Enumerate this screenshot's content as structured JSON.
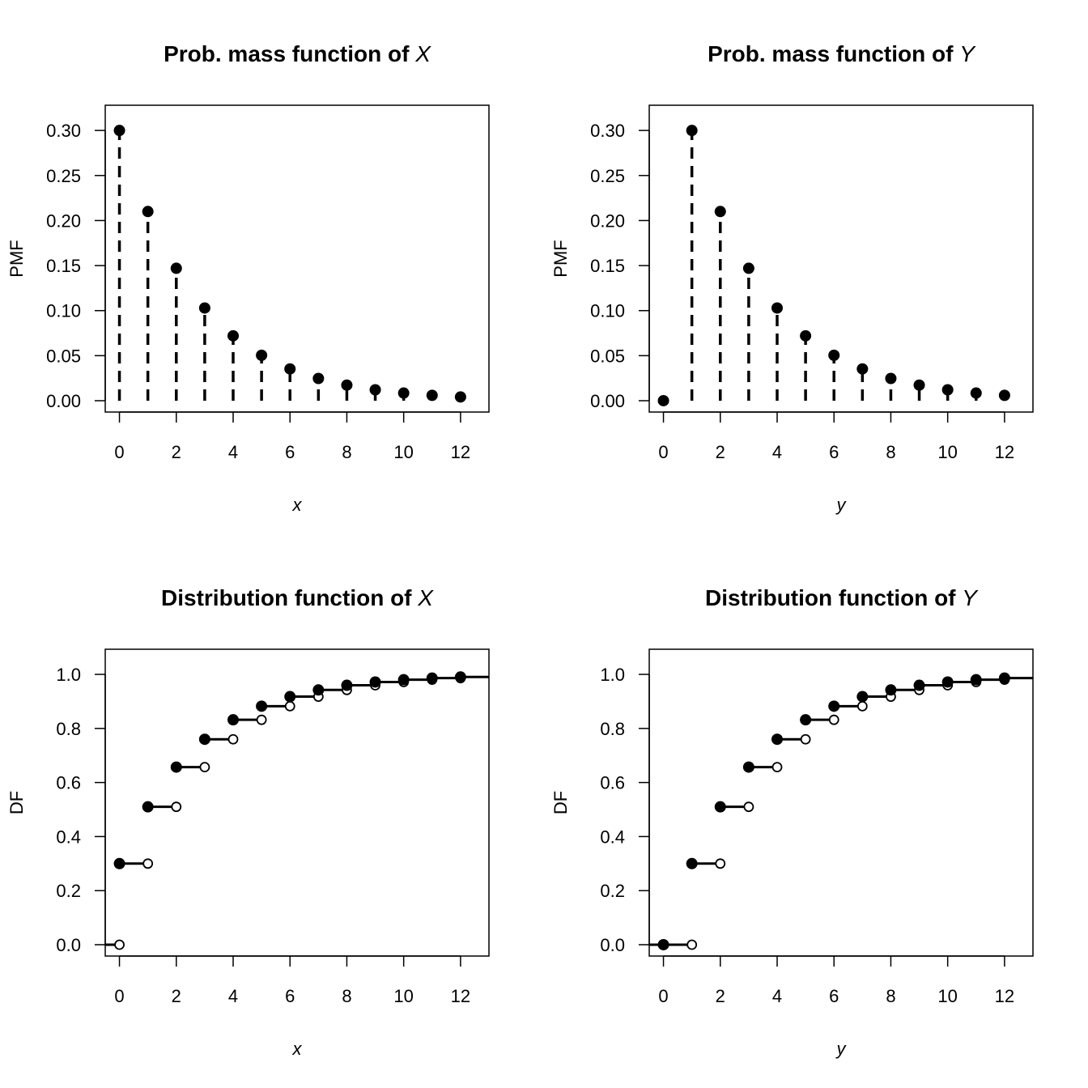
{
  "chart_data": [
    {
      "type": "scatter",
      "style": "pmf-dashed-stems",
      "title": "Prob. mass function of ",
      "title_var": "X",
      "xlabel": "x",
      "ylabel": "PMF",
      "xlim": [
        -0.5,
        13
      ],
      "ylim": [
        -0.0126,
        0.328
      ],
      "xticks": [
        "0",
        "2",
        "4",
        "6",
        "8",
        "10",
        "12"
      ],
      "yticks": [
        "0.00",
        "0.05",
        "0.10",
        "0.15",
        "0.20",
        "0.25",
        "0.30"
      ],
      "x": [
        0,
        1,
        2,
        3,
        4,
        5,
        6,
        7,
        8,
        9,
        10,
        11,
        12
      ],
      "y": [
        0.3,
        0.21,
        0.147,
        0.1029,
        0.07203,
        0.050421,
        0.035295,
        0.024706,
        0.017294,
        0.012106,
        0.008474,
        0.005932,
        0.004152
      ],
      "grid": false
    },
    {
      "type": "scatter",
      "style": "pmf-dashed-stems",
      "title": "Prob. mass function of ",
      "title_var": "Y",
      "xlabel": "y",
      "ylabel": "PMF",
      "xlim": [
        -0.5,
        13
      ],
      "ylim": [
        -0.0126,
        0.328
      ],
      "xticks": [
        "0",
        "2",
        "4",
        "6",
        "8",
        "10",
        "12"
      ],
      "yticks": [
        "0.00",
        "0.05",
        "0.10",
        "0.15",
        "0.20",
        "0.25",
        "0.30"
      ],
      "x": [
        0,
        1,
        2,
        3,
        4,
        5,
        6,
        7,
        8,
        9,
        10,
        11,
        12
      ],
      "y": [
        0,
        0.3,
        0.21,
        0.147,
        0.1029,
        0.07203,
        0.050421,
        0.035295,
        0.024706,
        0.017294,
        0.012106,
        0.008474,
        0.005932
      ],
      "grid": false
    },
    {
      "type": "line",
      "style": "step-cdf",
      "title": "Distribution function of ",
      "title_var": "X",
      "xlabel": "x",
      "ylabel": "DF",
      "xlim": [
        -0.5,
        13
      ],
      "ylim": [
        -0.042,
        1.093
      ],
      "xticks": [
        "0",
        "2",
        "4",
        "6",
        "8",
        "10",
        "12"
      ],
      "yticks": [
        "0.0",
        "0.2",
        "0.4",
        "0.6",
        "0.8",
        "1.0"
      ],
      "x": [
        0,
        1,
        2,
        3,
        4,
        5,
        6,
        7,
        8,
        9,
        10,
        11,
        12
      ],
      "y": [
        0.3,
        0.51,
        0.657,
        0.7599,
        0.83193,
        0.882351,
        0.917646,
        0.942352,
        0.959646,
        0.971752,
        0.980227,
        0.986159,
        0.990311
      ],
      "grid": false
    },
    {
      "type": "line",
      "style": "step-cdf",
      "title": "Distribution function of ",
      "title_var": "Y",
      "xlabel": "y",
      "ylabel": "DF",
      "xlim": [
        -0.5,
        13
      ],
      "ylim": [
        -0.042,
        1.093
      ],
      "xticks": [
        "0",
        "2",
        "4",
        "6",
        "8",
        "10",
        "12"
      ],
      "yticks": [
        "0.0",
        "0.2",
        "0.4",
        "0.6",
        "0.8",
        "1.0"
      ],
      "x": [
        0,
        1,
        2,
        3,
        4,
        5,
        6,
        7,
        8,
        9,
        10,
        11,
        12
      ],
      "y": [
        0,
        0.3,
        0.51,
        0.657,
        0.7599,
        0.83193,
        0.882351,
        0.917646,
        0.942352,
        0.959646,
        0.971752,
        0.980227,
        0.986159
      ],
      "grid": false
    }
  ]
}
